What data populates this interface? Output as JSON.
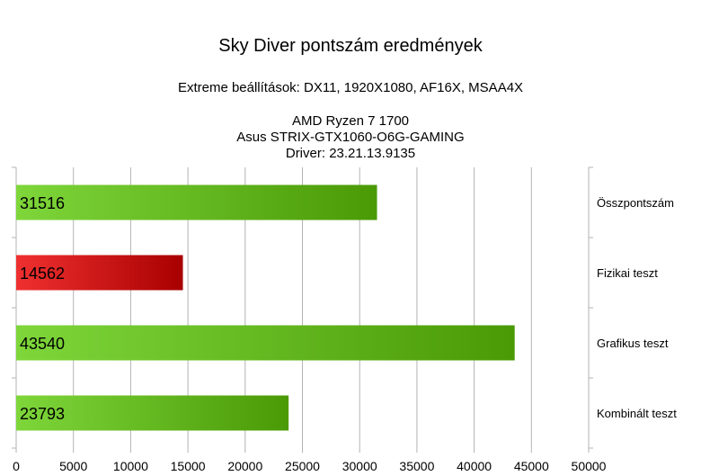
{
  "header": {
    "title": "Sky Diver pontszám eredmények",
    "subtitle": "Extreme beállítások: DX11, 1920X1080, AF16X, MSAA4X",
    "system_lines": [
      "AMD Ryzen 7 1700",
      "Asus STRIX-GTX1060-O6G-GAMING",
      "Driver: 23.21.13.9135"
    ]
  },
  "colors": {
    "green_light": "#7ed63a",
    "green_dark": "#4a9a06",
    "red_light": "#f03030",
    "red_dark": "#a80000",
    "grid": "#b3b3b3"
  },
  "chart_data": {
    "type": "bar",
    "orientation": "horizontal",
    "categories": [
      "Összpontszám",
      "Fizikai teszt",
      "Grafikus teszt",
      "Kombinált teszt"
    ],
    "values": [
      31516,
      14562,
      43540,
      23793
    ],
    "bar_colors": [
      "green",
      "red",
      "green",
      "green"
    ],
    "xlim": [
      0,
      50000
    ],
    "xticks": [
      "0",
      "5000",
      "10000",
      "15000",
      "20000",
      "25000",
      "30000",
      "35000",
      "40000",
      "45000",
      "50000"
    ],
    "grid": true,
    "legend": "none"
  }
}
